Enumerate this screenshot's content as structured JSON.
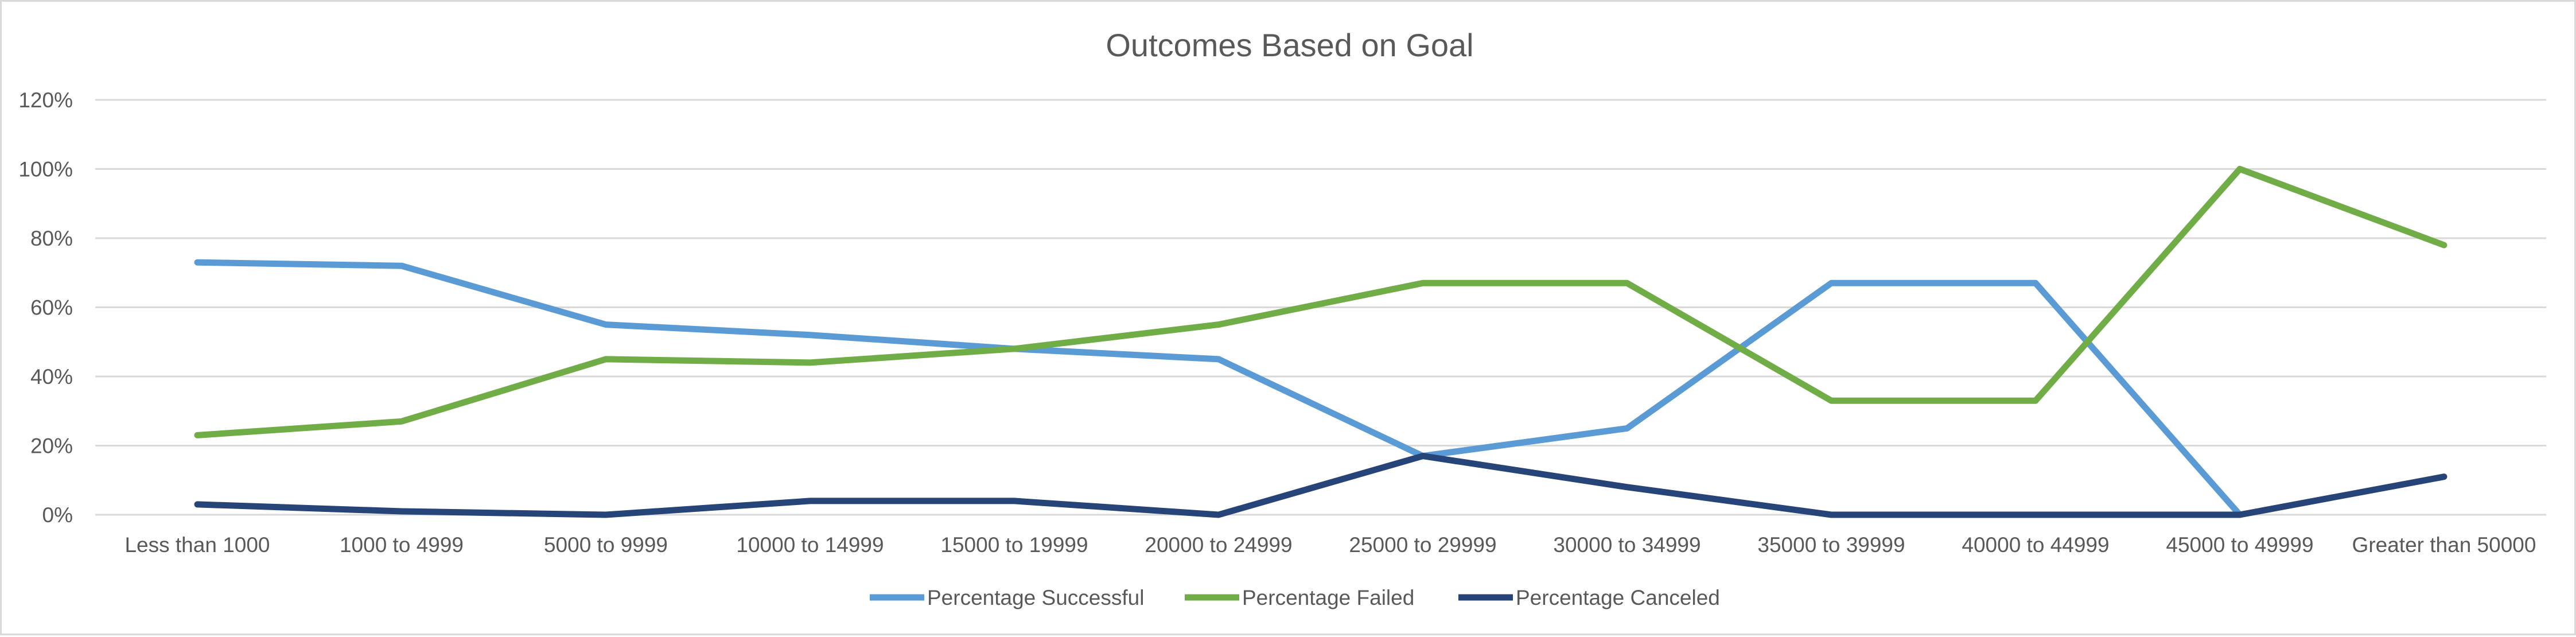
{
  "chart_data": {
    "type": "line",
    "title": "Outcomes Based on Goal",
    "xlabel": "",
    "ylabel": "",
    "categories": [
      "Less than 1000",
      "1000 to 4999",
      "5000 to 9999",
      "10000 to 14999",
      "15000 to 19999",
      "20000 to 24999",
      "25000 to 29999",
      "30000 to 34999",
      "35000 to 39999",
      "40000 to 44999",
      "45000 to 49999",
      "Greater than 50000"
    ],
    "ylim": [
      0,
      1.2
    ],
    "y_ticks": [
      0,
      0.2,
      0.4,
      0.6,
      0.8,
      1.0,
      1.2
    ],
    "y_tick_labels": [
      "0%",
      "20%",
      "40%",
      "60%",
      "80%",
      "100%",
      "120%"
    ],
    "grid": true,
    "legend_position": "bottom",
    "series": [
      {
        "name": "Percentage Successful",
        "color": "#5b9bd5",
        "values": [
          0.73,
          0.72,
          0.55,
          0.52,
          0.48,
          0.45,
          0.17,
          0.25,
          0.67,
          0.67,
          0.0,
          null
        ]
      },
      {
        "name": "Percentage Failed",
        "color": "#70ad47",
        "values": [
          0.23,
          0.27,
          0.45,
          0.44,
          0.48,
          0.55,
          0.67,
          0.67,
          0.33,
          0.33,
          1.0,
          0.78
        ]
      },
      {
        "name": "Percentage Canceled",
        "color": "#264478",
        "values": [
          0.03,
          0.01,
          0.0,
          0.04,
          0.04,
          0.0,
          0.17,
          0.08,
          0.0,
          0.0,
          0.0,
          0.11
        ]
      }
    ]
  }
}
